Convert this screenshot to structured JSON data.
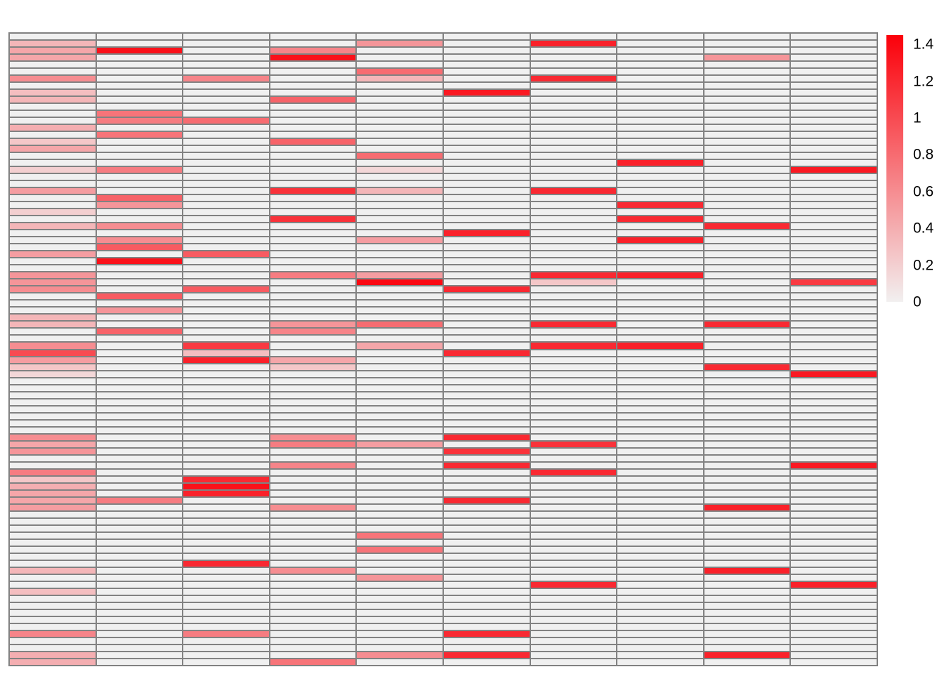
{
  "chart_data": {
    "type": "heatmap",
    "title": "",
    "xlabel": "",
    "ylabel": "",
    "n_rows": 90,
    "n_cols": 10,
    "value_range": [
      0,
      1.45
    ],
    "grid": true,
    "grid_line_color": "#828282",
    "empty_cell_color": "#f0f0f0",
    "color_low": "#f2f0f0",
    "color_high": "#fb000a",
    "legend_position": "right-top",
    "colorbar": {
      "tick_labels": [
        "1.4",
        "1.2",
        "1",
        "0.8",
        "0.6",
        "0.4",
        "0.2",
        "0"
      ],
      "tick_values": [
        1.4,
        1.2,
        1.0,
        0.8,
        0.6,
        0.4,
        0.2,
        0
      ]
    },
    "cells_format": "[row, col, value] for all non-zero cells; all other cells are 0",
    "cells": [
      [
        1,
        0,
        0.35
      ],
      [
        1,
        4,
        0.55
      ],
      [
        1,
        6,
        1.25
      ],
      [
        2,
        0,
        0.45
      ],
      [
        2,
        1,
        1.35
      ],
      [
        2,
        3,
        0.65
      ],
      [
        3,
        0,
        0.45
      ],
      [
        3,
        3,
        1.35
      ],
      [
        3,
        8,
        0.55
      ],
      [
        5,
        4,
        0.8
      ],
      [
        6,
        0,
        0.6
      ],
      [
        6,
        2,
        0.65
      ],
      [
        6,
        4,
        0.35
      ],
      [
        6,
        6,
        1.2
      ],
      [
        8,
        0,
        0.3
      ],
      [
        8,
        5,
        1.3
      ],
      [
        9,
        0,
        0.35
      ],
      [
        9,
        3,
        0.85
      ],
      [
        11,
        1,
        0.75
      ],
      [
        12,
        1,
        0.7
      ],
      [
        12,
        2,
        0.8
      ],
      [
        13,
        0,
        0.4
      ],
      [
        14,
        1,
        0.75
      ],
      [
        15,
        0,
        0.25
      ],
      [
        15,
        3,
        0.85
      ],
      [
        16,
        0,
        0.45
      ],
      [
        17,
        4,
        0.8
      ],
      [
        18,
        7,
        1.25
      ],
      [
        19,
        0,
        0.2
      ],
      [
        19,
        1,
        0.7
      ],
      [
        19,
        4,
        0.15
      ],
      [
        19,
        9,
        1.3
      ],
      [
        22,
        0,
        0.5
      ],
      [
        22,
        3,
        1.15
      ],
      [
        22,
        4,
        0.35
      ],
      [
        22,
        6,
        1.2
      ],
      [
        23,
        1,
        0.85
      ],
      [
        24,
        1,
        0.55
      ],
      [
        24,
        7,
        1.2
      ],
      [
        25,
        0,
        0.2
      ],
      [
        26,
        3,
        1.15
      ],
      [
        26,
        7,
        1.2
      ],
      [
        27,
        0,
        0.35
      ],
      [
        27,
        1,
        0.6
      ],
      [
        27,
        8,
        1.2
      ],
      [
        28,
        5,
        1.25
      ],
      [
        29,
        1,
        0.6
      ],
      [
        29,
        4,
        0.5
      ],
      [
        29,
        7,
        1.25
      ],
      [
        30,
        1,
        0.9
      ],
      [
        31,
        0,
        0.5
      ],
      [
        31,
        2,
        0.9
      ],
      [
        32,
        1,
        1.35
      ],
      [
        34,
        0,
        0.55
      ],
      [
        34,
        3,
        0.7
      ],
      [
        34,
        4,
        0.5
      ],
      [
        34,
        6,
        1.2
      ],
      [
        34,
        7,
        1.25
      ],
      [
        35,
        0,
        0.55
      ],
      [
        35,
        4,
        1.4
      ],
      [
        35,
        6,
        0.25
      ],
      [
        35,
        9,
        1.1
      ],
      [
        36,
        0,
        0.6
      ],
      [
        36,
        2,
        0.9
      ],
      [
        36,
        5,
        1.2
      ],
      [
        37,
        1,
        0.9
      ],
      [
        39,
        1,
        0.55
      ],
      [
        40,
        0,
        0.35
      ],
      [
        41,
        0,
        0.35
      ],
      [
        41,
        3,
        0.55
      ],
      [
        41,
        4,
        0.8
      ],
      [
        41,
        6,
        1.2
      ],
      [
        41,
        8,
        1.2
      ],
      [
        42,
        1,
        0.85
      ],
      [
        42,
        3,
        0.65
      ],
      [
        44,
        0,
        0.6
      ],
      [
        44,
        2,
        1.1
      ],
      [
        44,
        4,
        0.45
      ],
      [
        44,
        6,
        1.2
      ],
      [
        44,
        7,
        1.25
      ],
      [
        45,
        0,
        1.0
      ],
      [
        45,
        2,
        0.3
      ],
      [
        45,
        5,
        1.2
      ],
      [
        46,
        0,
        0.5
      ],
      [
        46,
        2,
        1.25
      ],
      [
        46,
        3,
        0.45
      ],
      [
        47,
        0,
        0.25
      ],
      [
        47,
        3,
        0.25
      ],
      [
        47,
        8,
        1.2
      ],
      [
        48,
        0,
        0.15
      ],
      [
        48,
        9,
        1.3
      ],
      [
        57,
        0,
        0.6
      ],
      [
        57,
        3,
        0.6
      ],
      [
        57,
        5,
        1.2
      ],
      [
        58,
        0,
        0.45
      ],
      [
        58,
        3,
        0.7
      ],
      [
        58,
        4,
        0.5
      ],
      [
        58,
        6,
        1.15
      ],
      [
        59,
        0,
        0.55
      ],
      [
        59,
        5,
        1.15
      ],
      [
        61,
        3,
        0.65
      ],
      [
        61,
        5,
        1.2
      ],
      [
        61,
        9,
        1.3
      ],
      [
        62,
        0,
        0.7
      ],
      [
        62,
        6,
        1.2
      ],
      [
        63,
        0,
        0.25
      ],
      [
        63,
        2,
        1.2
      ],
      [
        64,
        0,
        0.4
      ],
      [
        64,
        2,
        1.35
      ],
      [
        65,
        0,
        0.45
      ],
      [
        65,
        2,
        1.25
      ],
      [
        66,
        0,
        0.45
      ],
      [
        66,
        1,
        0.7
      ],
      [
        66,
        5,
        1.2
      ],
      [
        67,
        0,
        0.5
      ],
      [
        67,
        3,
        0.6
      ],
      [
        67,
        8,
        1.25
      ],
      [
        71,
        4,
        0.75
      ],
      [
        73,
        4,
        0.75
      ],
      [
        75,
        2,
        1.2
      ],
      [
        76,
        0,
        0.35
      ],
      [
        76,
        3,
        0.6
      ],
      [
        76,
        8,
        1.25
      ],
      [
        77,
        4,
        0.55
      ],
      [
        78,
        6,
        1.2
      ],
      [
        78,
        9,
        1.25
      ],
      [
        79,
        0,
        0.3
      ],
      [
        85,
        0,
        0.65
      ],
      [
        85,
        2,
        0.7
      ],
      [
        85,
        5,
        1.2
      ],
      [
        88,
        0,
        0.4
      ],
      [
        88,
        4,
        0.6
      ],
      [
        88,
        5,
        1.2
      ],
      [
        88,
        8,
        1.25
      ],
      [
        89,
        0,
        0.4
      ],
      [
        89,
        3,
        0.75
      ]
    ]
  }
}
